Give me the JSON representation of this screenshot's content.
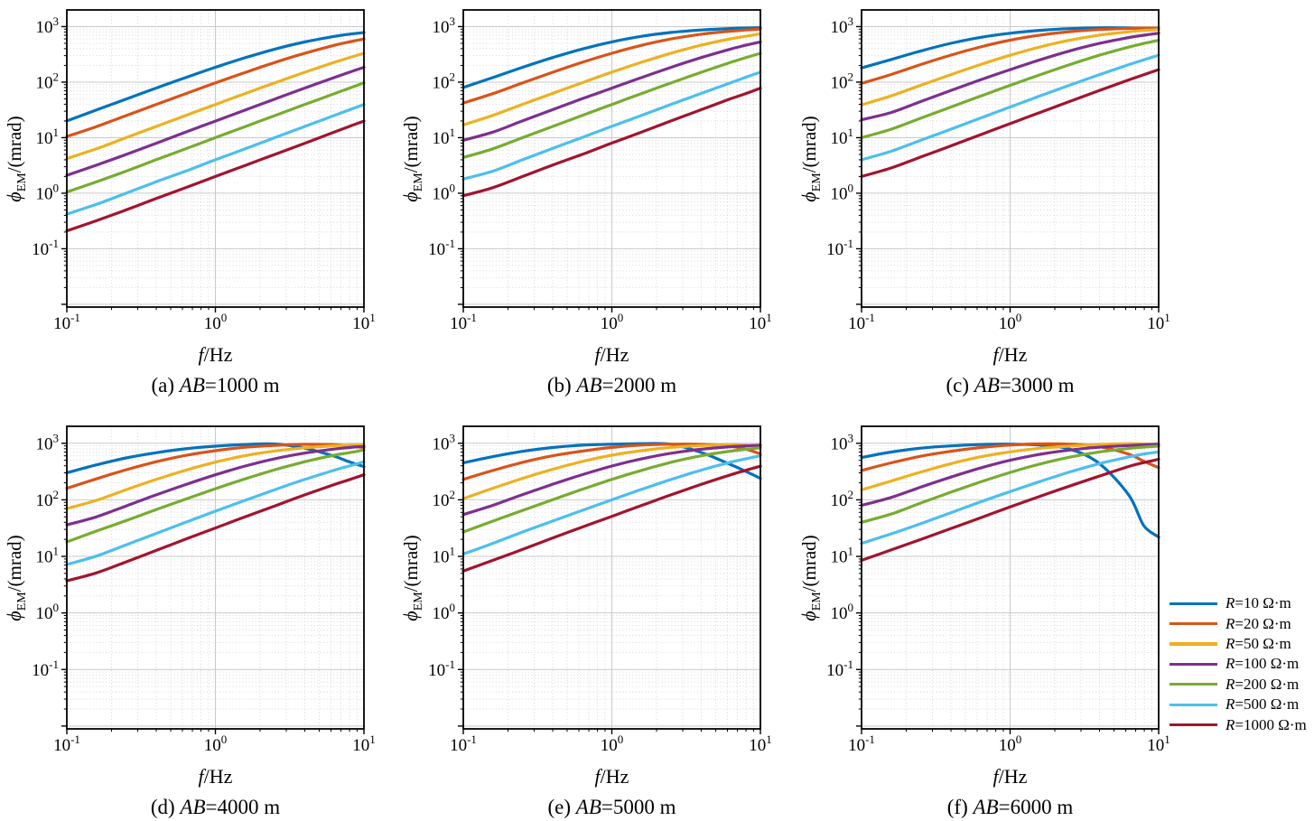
{
  "figure": {
    "background": "#ffffff",
    "axis": {
      "xlabel": {
        "var": "f",
        "rest": "/Hz"
      },
      "ylabel": {
        "sym": "ϕ",
        "sub": "EM",
        "rest": "/(mrad)"
      },
      "tick_base": "10",
      "x_tick_exponents": [
        -1,
        0,
        1
      ],
      "y_tick_exponents": [
        3,
        2,
        1,
        0,
        -1
      ],
      "xlim_log10": [
        -1,
        1
      ],
      "ylim_log10": [
        -2.05,
        3.3
      ],
      "grid_major": true,
      "grid_minor": true
    },
    "colors": {
      "grid_major": "#c9c9c9",
      "grid_minor": "#cfcfcf",
      "spine": "#000000"
    }
  },
  "legend": {
    "position": "right-middle",
    "items": [
      {
        "var": "R",
        "rest": "=10 Ω·m",
        "color": "#0072BD"
      },
      {
        "var": "R",
        "rest": "=20 Ω·m",
        "color": "#D95319"
      },
      {
        "var": "R",
        "rest": "=50 Ω·m",
        "color": "#EDB120"
      },
      {
        "var": "R",
        "rest": "=100 Ω·m",
        "color": "#7E2F8E"
      },
      {
        "var": "R",
        "rest": "=200 Ω·m",
        "color": "#77AC30"
      },
      {
        "var": "R",
        "rest": "=500 Ω·m",
        "color": "#4DBEEE"
      },
      {
        "var": "R",
        "rest": "=1000 Ω·m",
        "color": "#A2142F"
      }
    ]
  },
  "chart_data": [
    {
      "type": "line",
      "x_scale": "log",
      "y_scale": "log",
      "caption": {
        "prefix": "(a) ",
        "var": "AB",
        "rest": "=1000 m"
      },
      "x": [
        0.1,
        0.158,
        0.251,
        0.398,
        0.631,
        1,
        1.585,
        2.512,
        3.981,
        6.31,
        7.943,
        10
      ],
      "series": [
        {
          "name": "R=10 Ω·m",
          "color": "#0072BD",
          "values": [
            20,
            31.5,
            49.6,
            78,
            121,
            185,
            275,
            393,
            529,
            666,
            728,
            783
          ]
        },
        {
          "name": "R=20 Ω·m",
          "color": "#D95319",
          "values": [
            10.5,
            15.8,
            25,
            39.4,
            62,
            97,
            149,
            226,
            330,
            459,
            529,
            598
          ]
        },
        {
          "name": "R=50 Ω·m",
          "color": "#EDB120",
          "values": [
            4.2,
            6.3,
            10,
            15.9,
            25.1,
            39.6,
            62.3,
            97.3,
            150,
            227,
            275,
            331
          ]
        },
        {
          "name": "R=100 Ω·m",
          "color": "#7E2F8E",
          "values": [
            2.1,
            3.2,
            5,
            7.9,
            12.6,
            19.9,
            31.4,
            49.6,
            78,
            121,
            150,
            185
          ]
        },
        {
          "name": "R=200 Ω·m",
          "color": "#77AC30",
          "values": [
            1.05,
            1.6,
            2.5,
            4,
            6.3,
            10,
            15.8,
            25,
            39.4,
            62,
            77.6,
            96.8
          ]
        },
        {
          "name": "R=500 Ω·m",
          "color": "#4DBEEE",
          "values": [
            0.42,
            0.63,
            1,
            1.6,
            2.5,
            4,
            6.3,
            10,
            15.9,
            25.1,
            31.6,
            39.6
          ]
        },
        {
          "name": "R=1000 Ω·m",
          "color": "#A2142F",
          "values": [
            0.21,
            0.32,
            0.5,
            0.8,
            1.26,
            2,
            3.16,
            5,
            7.9,
            12.6,
            15.9,
            19.9
          ]
        }
      ]
    },
    {
      "type": "line",
      "x_scale": "log",
      "y_scale": "log",
      "caption": {
        "prefix": "(b) ",
        "var": "AB",
        "rest": "=2000 m"
      },
      "x": [
        0.1,
        0.158,
        0.251,
        0.398,
        0.631,
        1,
        1.585,
        2.512,
        3.981,
        6.31,
        7.943,
        10
      ],
      "series": [
        {
          "name": "R=10 Ω·m",
          "color": "#0072BD",
          "values": [
            80,
            121,
            185,
            276,
            394,
            531,
            668,
            784,
            868,
            923,
            941,
            955
          ]
        },
        {
          "name": "R=20 Ω·m",
          "color": "#D95319",
          "values": [
            42,
            62,
            97,
            150,
            227,
            331,
            460,
            599,
            728,
            829,
            868,
            899
          ]
        },
        {
          "name": "R=50 Ω·m",
          "color": "#EDB120",
          "values": [
            17,
            25.2,
            39.8,
            62.6,
            97.7,
            151,
            228,
            333,
            462,
            603,
            668,
            745
          ]
        },
        {
          "name": "R=100 Ω·m",
          "color": "#7E2F8E",
          "values": [
            9,
            12.6,
            20.1,
            31.8,
            50.2,
            78,
            121,
            185,
            276,
            394,
            461,
            531
          ]
        },
        {
          "name": "R=200 Ω·m",
          "color": "#77AC30",
          "values": [
            4.4,
            6.3,
            10,
            15.9,
            25.1,
            39.6,
            62.3,
            97.3,
            150,
            227,
            275,
            331
          ]
        },
        {
          "name": "R=500 Ω·m",
          "color": "#4DBEEE",
          "values": [
            1.8,
            2.5,
            4,
            6.4,
            10.1,
            16,
            25.2,
            39.8,
            62.6,
            97.7,
            122,
            151
          ]
        },
        {
          "name": "R=1000 Ω·m",
          "color": "#A2142F",
          "values": [
            0.9,
            1.26,
            2,
            3.2,
            5,
            8,
            12.6,
            20.1,
            31.8,
            50.2,
            62,
            78
          ]
        }
      ]
    },
    {
      "type": "line",
      "x_scale": "log",
      "y_scale": "log",
      "caption": {
        "prefix": "(c) ",
        "var": "AB",
        "rest": "=3000 m"
      },
      "x": [
        0.1,
        0.158,
        0.251,
        0.398,
        0.631,
        1,
        1.585,
        2.512,
        3.981,
        6.31,
        7.943,
        10
      ],
      "series": [
        {
          "name": "R=10 Ω·m",
          "color": "#0072BD",
          "values": [
            180,
            255,
            365,
            500,
            640,
            760,
            855,
            920,
            950,
            945,
            925,
            885
          ]
        },
        {
          "name": "R=20 Ω·m",
          "color": "#D95319",
          "values": [
            95,
            137,
            208,
            306,
            430,
            570,
            702,
            810,
            886,
            930,
            940,
            935
          ]
        },
        {
          "name": "R=50 Ω·m",
          "color": "#EDB120",
          "values": [
            39,
            56.5,
            88,
            136,
            207,
            305,
            429,
            568,
            702,
            809,
            852,
            886
          ]
        },
        {
          "name": "R=100 Ω·m",
          "color": "#7E2F8E",
          "values": [
            21,
            28.4,
            44.8,
            70.5,
            110,
            168,
            252,
            364,
            497,
            636,
            700,
            758
          ]
        },
        {
          "name": "R=200 Ω·m",
          "color": "#77AC30",
          "values": [
            10,
            14.2,
            22.5,
            35.5,
            55.8,
            87.5,
            135,
            206,
            304,
            428,
            497,
            566
          ]
        },
        {
          "name": "R=500 Ω·m",
          "color": "#4DBEEE",
          "values": [
            4,
            5.7,
            9,
            14.2,
            22.5,
            35.7,
            56.2,
            88,
            136,
            207,
            252,
            305
          ]
        },
        {
          "name": "R=1000 Ω·m",
          "color": "#A2142F",
          "values": [
            2,
            2.85,
            4.5,
            7.1,
            11.3,
            17.9,
            28.4,
            44.8,
            70.5,
            110,
            136,
            168
          ]
        }
      ]
    },
    {
      "type": "line",
      "x_scale": "log",
      "y_scale": "log",
      "caption": {
        "prefix": "(d) ",
        "var": "AB",
        "rest": "=4000 m"
      },
      "x": [
        0.1,
        0.158,
        0.251,
        0.398,
        0.631,
        1,
        1.585,
        2.512,
        3.981,
        6.31,
        7.943,
        10
      ],
      "series": [
        {
          "name": "R=10 Ω·m",
          "color": "#0072BD",
          "values": [
            300,
            415,
            550,
            680,
            800,
            890,
            950,
            970,
            820,
            590,
            470,
            385
          ]
        },
        {
          "name": "R=20 Ω·m",
          "color": "#D95319",
          "values": [
            160,
            235,
            340,
            470,
            610,
            740,
            850,
            920,
            955,
            945,
            900,
            840
          ]
        },
        {
          "name": "R=50 Ω·m",
          "color": "#EDB120",
          "values": [
            70,
            98,
            151,
            229,
            334,
            463,
            604,
            731,
            831,
            905,
            930,
            950
          ]
        },
        {
          "name": "R=100 Ω·m",
          "color": "#7E2F8E",
          "values": [
            36,
            50,
            78,
            122,
            186,
            277,
            395,
            533,
            669,
            790,
            840,
            880
          ]
        },
        {
          "name": "R=200 Ω·m",
          "color": "#77AC30",
          "values": [
            18,
            28,
            43,
            67,
            103,
            157,
            235,
            340,
            470,
            615,
            680,
            760
          ]
        },
        {
          "name": "R=500 Ω·m",
          "color": "#4DBEEE",
          "values": [
            7.2,
            10.1,
            16,
            25.3,
            40,
            63,
            98,
            151,
            229,
            334,
            396,
            470
          ]
        },
        {
          "name": "R=1000 Ω·m",
          "color": "#A2142F",
          "values": [
            3.7,
            5.1,
            8,
            12.7,
            20.2,
            31.8,
            50,
            78,
            122,
            186,
            226,
            277
          ]
        }
      ]
    },
    {
      "type": "line",
      "x_scale": "log",
      "y_scale": "log",
      "caption": {
        "prefix": "(e) ",
        "var": "AB",
        "rest": "=5000 m"
      },
      "x": [
        0.1,
        0.158,
        0.251,
        0.398,
        0.631,
        1,
        1.585,
        2.512,
        3.981,
        6.31,
        7.943,
        10
      ],
      "series": [
        {
          "name": "R=10 Ω·m",
          "color": "#0072BD",
          "values": [
            450,
            580,
            720,
            840,
            925,
            965,
            985,
            960,
            690,
            420,
            320,
            240
          ]
        },
        {
          "name": "R=20 Ω·m",
          "color": "#D95319",
          "values": [
            230,
            330,
            460,
            600,
            725,
            845,
            930,
            965,
            955,
            885,
            790,
            650
          ]
        },
        {
          "name": "R=50 Ω·m",
          "color": "#EDB120",
          "values": [
            105,
            160,
            240,
            345,
            475,
            615,
            740,
            845,
            910,
            940,
            925,
            895
          ]
        },
        {
          "name": "R=100 Ω·m",
          "color": "#7E2F8E",
          "values": [
            55,
            80,
            124,
            188,
            278,
            395,
            530,
            668,
            785,
            868,
            897,
            925
          ]
        },
        {
          "name": "R=200 Ω·m",
          "color": "#77AC30",
          "values": [
            27,
            42,
            65,
            100,
            153,
            230,
            332,
            462,
            600,
            727,
            780,
            830
          ]
        },
        {
          "name": "R=500 Ω·m",
          "color": "#4DBEEE",
          "values": [
            11,
            17,
            27,
            42,
            65,
            100,
            153,
            230,
            334,
            463,
            530,
            600
          ]
        },
        {
          "name": "R=1000 Ω·m",
          "color": "#A2142F",
          "values": [
            5.5,
            8.5,
            13.3,
            21,
            33,
            51,
            79.5,
            123,
            187,
            277,
            332,
            393
          ]
        }
      ]
    },
    {
      "type": "line",
      "x_scale": "log",
      "y_scale": "log",
      "caption": {
        "prefix": "(f) ",
        "var": "AB",
        "rest": "=6000 m"
      },
      "x": [
        0.1,
        0.158,
        0.251,
        0.398,
        0.631,
        1,
        1.585,
        2.512,
        3.981,
        6.31,
        7.943,
        10
      ],
      "series": [
        {
          "name": "R=10 Ω·m",
          "color": "#0072BD",
          "values": [
            560,
            700,
            820,
            900,
            950,
            965,
            930,
            790,
            440,
            120,
            35,
            22
          ]
        },
        {
          "name": "R=20 Ω·m",
          "color": "#D95319",
          "values": [
            330,
            450,
            590,
            720,
            840,
            930,
            975,
            965,
            870,
            640,
            480,
            370
          ]
        },
        {
          "name": "R=50 Ω·m",
          "color": "#EDB120",
          "values": [
            150,
            215,
            310,
            435,
            575,
            705,
            815,
            890,
            950,
            985,
            975,
            955
          ]
        },
        {
          "name": "R=100 Ω·m",
          "color": "#7E2F8E",
          "values": [
            80,
            110,
            168,
            252,
            365,
            500,
            637,
            759,
            851,
            913,
            940,
            965
          ]
        },
        {
          "name": "R=200 Ω·m",
          "color": "#77AC30",
          "values": [
            40,
            56,
            88,
            136,
            207,
            305,
            429,
            568,
            702,
            810,
            855,
            890
          ]
        },
        {
          "name": "R=500 Ω·m",
          "color": "#4DBEEE",
          "values": [
            17,
            25,
            38,
            59,
            92,
            140,
            210,
            310,
            435,
            575,
            645,
            705
          ]
        },
        {
          "name": "R=1000 Ω·m",
          "color": "#A2142F",
          "values": [
            8.5,
            13,
            20,
            31,
            48,
            75,
            115,
            175,
            262,
            390,
            455,
            520
          ]
        }
      ]
    }
  ]
}
